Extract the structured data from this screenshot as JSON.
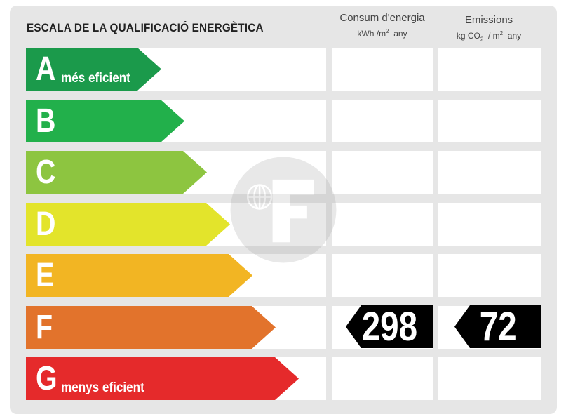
{
  "title": "ESCALA DE LA QUALIFICACIÓ ENERGÈTICA",
  "columns": {
    "consumption": {
      "label": "Consum d'energia",
      "unit_prefix": "kWh /m",
      "unit_exp": "2",
      "unit_suffix": "any"
    },
    "emissions": {
      "label": "Emissions",
      "unit_prefix": "kg CO",
      "unit_co2_sub": "2",
      "unit_mid": "/ m",
      "unit_exp": "2",
      "unit_suffix": "any"
    }
  },
  "ratings": [
    {
      "letter": "A",
      "caption": "més eficient",
      "color": "#1b9a4b"
    },
    {
      "letter": "B",
      "caption": "",
      "color": "#22b04b"
    },
    {
      "letter": "C",
      "caption": "",
      "color": "#8dc540"
    },
    {
      "letter": "D",
      "caption": "",
      "color": "#e3e42b"
    },
    {
      "letter": "E",
      "caption": "",
      "color": "#f2b523"
    },
    {
      "letter": "F",
      "caption": "",
      "color": "#e2732c"
    },
    {
      "letter": "G",
      "caption": "menys eficient",
      "color": "#e52a2b"
    }
  ],
  "current_rating": "F",
  "consumption_value": "298",
  "emissions_value": "72",
  "watermark_icon": "logo-f-icon"
}
